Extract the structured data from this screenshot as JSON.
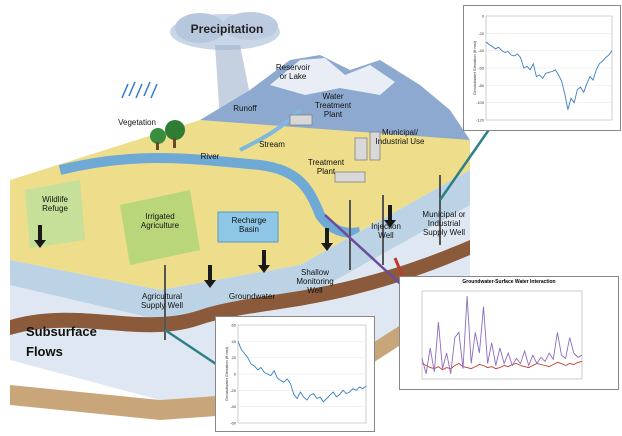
{
  "labels": {
    "precipitation": "Precipitation",
    "reservoir": "Reservoir\nor Lake",
    "water_treatment": "Water\nTreatment\nPlant",
    "municipal_industrial_use": "Municipal/\nIndustrial Use",
    "runoff": "Runoff",
    "stream": "Stream",
    "vegetation": "Vegetation",
    "river": "River",
    "treatment_plant": "Treatment\nPlant",
    "wildlife_refuge": "Wildlife\nRefuge",
    "irrigated_agriculture": "Irrigated\nAgriculture",
    "recharge_basin": "Recharge\nBasin",
    "injection_well": "Injection\nWell",
    "municipal_supply_well": "Municipal or\nIndustrial\nSupply Well",
    "groundwater": "Groundwater",
    "shallow_monitoring_well": "Shallow\nMonitoring\nWell",
    "agricultural_supply_well": "Agricultural\nSupply Well",
    "subsurface_flows": "Subsurface\nFlows"
  },
  "colors": {
    "sky_mountain": "#9fb7d6",
    "snow": "#eef2f8",
    "land_yellow": "#eedd8a",
    "land_green": "#b9d67a",
    "river": "#7fb8de",
    "soil_top": "#bcd3e6",
    "soil_brown": "#8a5a3a",
    "aquifer": "#dfe8f2",
    "arrow_teal": "#2d7f8a",
    "arrow_purple": "#6b4c9a",
    "series_red": "#c0392b",
    "series_purple": "#8e6bbf",
    "series_blue": "#3a7fc1"
  },
  "chart_data": [
    {
      "type": "line",
      "ylabel": "Groundwater Elevation (ft msl)",
      "ylim": [
        -120,
        0
      ],
      "yticks": [
        "0",
        "-20",
        "-40",
        "-60",
        "-80",
        "-100",
        "-120"
      ],
      "series": [
        {
          "values": [
            -30,
            -33,
            -35,
            -38,
            -36,
            -40,
            -42,
            -41,
            -45,
            -46,
            -44,
            -48,
            -60,
            -58,
            -62,
            -55,
            -70,
            -68,
            -72,
            -66,
            -65,
            -64,
            -62,
            -68,
            -75,
            -90,
            -108,
            -95,
            -100,
            -85,
            -82,
            -88,
            -78,
            -70,
            -74,
            -62,
            -55,
            -52,
            -48,
            -45,
            -40
          ]
        }
      ]
    },
    {
      "type": "line",
      "ylabel": "Groundwater Elevation (ft msl)",
      "ylim": [
        -60,
        60
      ],
      "yticks": [
        "60",
        "40",
        "20",
        "0",
        "-20",
        "-40",
        "-60"
      ],
      "series": [
        {
          "values": [
            40,
            30,
            25,
            20,
            12,
            10,
            5,
            8,
            2,
            0,
            -2,
            4,
            -5,
            -8,
            -10,
            -6,
            -12,
            -25,
            -30,
            -22,
            -28,
            -32,
            -26,
            -24,
            -30,
            -28,
            -34,
            -30,
            -26,
            -22,
            -28,
            -25,
            -20,
            -24,
            -22,
            -18,
            -20,
            -16,
            -18,
            -15
          ]
        }
      ]
    },
    {
      "type": "line",
      "title": "Groundwater-Surface Water Interaction",
      "series": [
        {
          "values": [
            30,
            28,
            26,
            25,
            27,
            24,
            26,
            25,
            28,
            30,
            27,
            26,
            25,
            27,
            29,
            28,
            26,
            27,
            25,
            26,
            28,
            27,
            29,
            30,
            28,
            27,
            26,
            28,
            30,
            29,
            28,
            27,
            29,
            31,
            30,
            28,
            30,
            29,
            31,
            32
          ]
        },
        {
          "values": [
            35,
            20,
            45,
            22,
            70,
            25,
            40,
            20,
            55,
            60,
            25,
            95,
            30,
            60,
            40,
            85,
            30,
            50,
            28,
            45,
            30,
            40,
            28,
            35,
            30,
            42,
            28,
            38,
            30,
            36,
            32,
            40,
            34,
            60,
            38,
            35,
            55,
            40,
            36,
            38
          ]
        }
      ]
    }
  ]
}
